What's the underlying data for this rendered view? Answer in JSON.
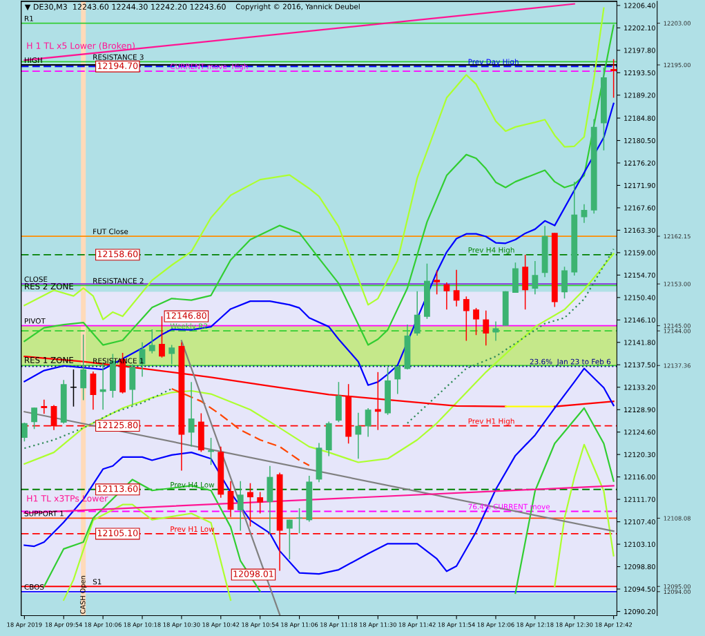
{
  "chart_data": {
    "type": "candlestick",
    "title": "▼ DE30,M3  12243.60 12244.30 12242.20 12243.60",
    "x": [
      "2019-04-18T09:42",
      "2019-04-18T09:45",
      "2019-04-18T09:48",
      "2019-04-18T09:51",
      "2019-04-18T09:54",
      "2019-04-18T09:57",
      "2019-04-18T10:00",
      "2019-04-18T10:03",
      "2019-04-18T10:06",
      "2019-04-18T10:09",
      "2019-04-18T10:12",
      "2019-04-18T10:15",
      "2019-04-18T10:18",
      "2019-04-18T10:21",
      "2019-04-18T10:24",
      "2019-04-18T10:27",
      "2019-04-18T10:30",
      "2019-04-18T10:33",
      "2019-04-18T10:36",
      "2019-04-18T10:39",
      "2019-04-18T10:42",
      "2019-04-18T10:45",
      "2019-04-18T10:48",
      "2019-04-18T10:51",
      "2019-04-18T10:54",
      "2019-04-18T10:57",
      "2019-04-18T11:00",
      "2019-04-18T11:03",
      "2019-04-18T11:06",
      "2019-04-18T11:09",
      "2019-04-18T11:12",
      "2019-04-18T11:15",
      "2019-04-18T11:18",
      "2019-04-18T11:21",
      "2019-04-18T11:24",
      "2019-04-18T11:27",
      "2019-04-18T11:30",
      "2019-04-18T11:33",
      "2019-04-18T11:36",
      "2019-04-18T11:39",
      "2019-04-18T11:42",
      "2019-04-18T11:45",
      "2019-04-18T11:48",
      "2019-04-18T11:51",
      "2019-04-18T11:54",
      "2019-04-18T11:57",
      "2019-04-18T12:00",
      "2019-04-18T12:03",
      "2019-04-18T12:06",
      "2019-04-18T12:09",
      "2019-04-18T12:12",
      "2019-04-18T12:15",
      "2019-04-18T12:18",
      "2019-04-18T12:21",
      "2019-04-18T12:24",
      "2019-04-18T12:27",
      "2019-04-18T12:30",
      "2019-04-18T12:33",
      "2019-04-18T12:36",
      "2019-04-18T12:39",
      "2019-04-18T12:42"
    ],
    "ohlc": [
      [
        12123.5,
        12126.4,
        12122.8,
        12126.3
      ],
      [
        12126.5,
        12129.3,
        12125.2,
        12129.3
      ],
      [
        12129.6,
        12130.8,
        12128.1,
        12129.2
      ],
      [
        12129.6,
        12129.8,
        12125.0,
        12125.7
      ],
      [
        12126.4,
        12134.6,
        12126.2,
        12133.8
      ],
      [
        12133.2,
        12136.6,
        12129.5,
        12133.2
      ],
      [
        12133.0,
        12143.3,
        12130.7,
        12136.6
      ],
      [
        12135.8,
        12136.2,
        12128.9,
        12131.7
      ],
      [
        12132.3,
        12137.8,
        12128.9,
        12132.8
      ],
      [
        12132.5,
        12139.6,
        12131.2,
        12138.3
      ],
      [
        12138.6,
        12139.8,
        12132.0,
        12132.2
      ],
      [
        12132.7,
        12137.6,
        12129.8,
        12137.1
      ],
      [
        12137.6,
        12141.8,
        12135.2,
        12140.5
      ],
      [
        12140.1,
        12144.3,
        12139.7,
        12141.3
      ],
      [
        12141.5,
        12146.8,
        12138.9,
        12139.1
      ],
      [
        12139.6,
        12141.3,
        12137.6,
        12140.8
      ],
      [
        12141.1,
        12141.8,
        12117.2,
        12124.1
      ],
      [
        12124.5,
        12134.2,
        12121.8,
        12127.2
      ],
      [
        12126.6,
        12128.2,
        12120.8,
        12121.1
      ],
      [
        12120.8,
        12123.5,
        12118.3,
        12121.1
      ],
      [
        12120.8,
        12121.8,
        12112.0,
        12112.6
      ],
      [
        12113.3,
        12115.2,
        12108.3,
        12109.7
      ],
      [
        12109.6,
        12115.2,
        12105.7,
        12112.6
      ],
      [
        12113.1,
        12114.8,
        12106.5,
        12112.1
      ],
      [
        12112.1,
        12113.1,
        12109.0,
        12111.1
      ],
      [
        12111.2,
        12118.1,
        12105.0,
        12116.0
      ],
      [
        12116.5,
        12116.8,
        12098.01,
        12105.7
      ],
      [
        12106.1,
        12107.8,
        12100.2,
        12107.8
      ],
      [
        12108.0,
        12110.0,
        12105.2,
        12108.2
      ],
      [
        12107.7,
        12116.2,
        12107.4,
        12115.1
      ],
      [
        12115.5,
        12122.5,
        12115.0,
        12121.6
      ],
      [
        12121.1,
        12126.6,
        12120.0,
        12126.3
      ],
      [
        12126.8,
        12134.2,
        12126.5,
        12131.6
      ],
      [
        12131.5,
        12133.8,
        12122.4,
        12123.7
      ],
      [
        12124.1,
        12128.3,
        12119.5,
        12125.8
      ],
      [
        12125.7,
        12129.2,
        12123.7,
        12128.9
      ],
      [
        12129.0,
        12136.1,
        12125.0,
        12128.5
      ],
      [
        12128.2,
        12137.0,
        12127.9,
        12134.5
      ],
      [
        12134.7,
        12137.2,
        12131.9,
        12137.2
      ],
      [
        12136.7,
        12145.2,
        12136.6,
        12143.1
      ],
      [
        12143.5,
        12151.6,
        12143.1,
        12147.1
      ],
      [
        12146.7,
        12156.9,
        12146.3,
        12153.6
      ],
      [
        12153.8,
        12155.6,
        12151.0,
        12153.3
      ],
      [
        12152.9,
        12153.3,
        12148.1,
        12151.6
      ],
      [
        12151.8,
        12155.7,
        12148.7,
        12149.8
      ],
      [
        12150.1,
        12150.6,
        12142.1,
        12147.8
      ],
      [
        12148.1,
        12148.4,
        12143.2,
        12146.2
      ],
      [
        12146.2,
        12147.9,
        12141.2,
        12143.5
      ],
      [
        12143.7,
        12145.8,
        12142.1,
        12144.5
      ],
      [
        12145.0,
        12151.6,
        12145.0,
        12151.6
      ],
      [
        12151.3,
        12157.1,
        12151.3,
        12156.0
      ],
      [
        12156.3,
        12158.6,
        12148.1,
        12151.8
      ],
      [
        12152.1,
        12157.4,
        12151.0,
        12154.7
      ],
      [
        12155.1,
        12164.1,
        12154.3,
        12162.2
      ],
      [
        12162.8,
        12162.8,
        12148.6,
        12149.5
      ],
      [
        12151.4,
        12156.3,
        12150.2,
        12155.6
      ],
      [
        12155.2,
        12172.6,
        12154.6,
        12166.3
      ],
      [
        12165.8,
        12168.3,
        12164.7,
        12167.2
      ],
      [
        12167.1,
        12184.6,
        12166.5,
        12183.1
      ],
      [
        12183.8,
        12194.5,
        12178.6,
        12192.6
      ],
      [
        12194.2,
        12196.1,
        12188.7,
        12193.8
      ]
    ],
    "colors": [
      "#3cb371",
      "#3cb371",
      "#ff0000",
      "#ff0000",
      "#3cb371",
      "#000000",
      "#3cb371",
      "#ff0000",
      "#3cb371",
      "#3cb371",
      "#ff0000",
      "#3cb371",
      "#3cb371",
      "#3cb371",
      "#ff0000",
      "#3cb371",
      "#ff0000",
      "#3cb371",
      "#ff0000",
      "#3cb371",
      "#ff0000",
      "#ff0000",
      "#3cb371",
      "#ff0000",
      "#ff0000",
      "#3cb371",
      "#ff0000",
      "#3cb371",
      "#3cb371",
      "#3cb371",
      "#3cb371",
      "#3cb371",
      "#3cb371",
      "#ff0000",
      "#3cb371",
      "#3cb371",
      "#ff0000",
      "#3cb371",
      "#3cb371",
      "#3cb371",
      "#3cb371",
      "#3cb371",
      "#ff0000",
      "#ff0000",
      "#ff0000",
      "#ff0000",
      "#ff0000",
      "#ff0000",
      "#3cb371",
      "#3cb371",
      "#3cb371",
      "#ff0000",
      "#3cb371",
      "#3cb371",
      "#ff0000",
      "#3cb371",
      "#3cb371",
      "#3cb371",
      "#3cb371",
      "#3cb371",
      "#ff0000"
    ],
    "series": [
      {
        "type": "line",
        "color": "#adff2f",
        "x": [
          "2019-04-18T09:42",
          "2019-04-18T09:51",
          "2019-04-18T09:57",
          "2019-04-18T10:00",
          "2019-04-18T10:03",
          "2019-04-18T10:06",
          "2019-04-18T10:09",
          "2019-04-18T10:12",
          "2019-04-18T10:21",
          "2019-04-18T10:27",
          "2019-04-18T10:33",
          "2019-04-18T10:39",
          "2019-04-18T10:45",
          "2019-04-18T10:54",
          "2019-04-18T11:03",
          "2019-04-18T11:09",
          "2019-04-18T11:12",
          "2019-04-18T11:18",
          "2019-04-18T11:27",
          "2019-04-18T11:30",
          "2019-04-18T11:36",
          "2019-04-18T11:42",
          "2019-04-18T11:51",
          "2019-04-18T11:57",
          "2019-04-18T12:00",
          "2019-04-18T12:06",
          "2019-04-18T12:09",
          "2019-04-18T12:12",
          "2019-04-18T12:18",
          "2019-04-18T12:21",
          "2019-04-18T12:24",
          "2019-04-18T12:27",
          "2019-04-18T12:30",
          "2019-04-18T12:33",
          "2019-04-18T12:36",
          "2019-04-18T12:39"
        ],
        "values": [
          12148.9,
          12151.8,
          12150.7,
          12152.2,
          12150.7,
          12146.2,
          12147.6,
          12146.8,
          12153.7,
          12156.6,
          12159.2,
          12165.7,
          12170.0,
          12173.0,
          12173.9,
          12171.3,
          12169.8,
          12164.0,
          12149.0,
          12150.2,
          12157.5,
          12173.3,
          12188.7,
          12193.1,
          12191.3,
          12184.2,
          12182.3,
          12183.1,
          12184.0,
          12184.5,
          12181.5,
          12179.3,
          12179.4,
          12181.2,
          12192.4,
          12205.9
        ]
      },
      {
        "type": "line",
        "color": "#32cd32",
        "x": [
          "2019-04-18T09:42",
          "2019-04-18T09:48",
          "2019-04-18T09:54",
          "2019-04-18T10:00",
          "2019-04-18T10:06",
          "2019-04-18T10:12",
          "2019-04-18T10:21",
          "2019-04-18T10:27",
          "2019-04-18T10:33",
          "2019-04-18T10:39",
          "2019-04-18T10:45",
          "2019-04-18T10:51",
          "2019-04-18T11:00",
          "2019-04-18T11:06",
          "2019-04-18T11:12",
          "2019-04-18T11:18",
          "2019-04-18T11:27",
          "2019-04-18T11:30",
          "2019-04-18T11:33",
          "2019-04-18T11:39",
          "2019-04-18T11:45",
          "2019-04-18T11:51",
          "2019-04-18T11:57",
          "2019-04-18T12:00",
          "2019-04-18T12:03",
          "2019-04-18T12:06",
          "2019-04-18T12:09",
          "2019-04-18T12:12",
          "2019-04-18T12:21",
          "2019-04-18T12:24",
          "2019-04-18T12:27",
          "2019-04-18T12:30",
          "2019-04-18T12:33",
          "2019-04-18T12:42"
        ],
        "values": [
          12142.0,
          12144.6,
          12145.2,
          12145.6,
          12141.3,
          12142.2,
          12148.5,
          12150.2,
          12149.9,
          12150.8,
          12157.6,
          12161.5,
          12164.2,
          12162.8,
          12157.9,
          12153.1,
          12141.3,
          12142.4,
          12144.2,
          12152.2,
          12164.9,
          12173.8,
          12177.8,
          12177.1,
          12175.1,
          12172.5,
          12171.5,
          12172.6,
          12174.8,
          12172.6,
          12171.5,
          12172.1,
          12173.8,
          12202.6
        ]
      },
      {
        "type": "line",
        "color": "#adff2f",
        "x": [
          "2019-04-18T09:42",
          "2019-04-18T09:51",
          "2019-04-18T10:00",
          "2019-04-18T10:12",
          "2019-04-18T10:21",
          "2019-04-18T10:27",
          "2019-04-18T10:33",
          "2019-04-18T10:39",
          "2019-04-18T10:51",
          "2019-04-18T11:00",
          "2019-04-18T11:09",
          "2019-04-18T11:15",
          "2019-04-18T11:24",
          "2019-04-18T11:33",
          "2019-04-18T11:42",
          "2019-04-18T11:48",
          "2019-04-18T12:03",
          "2019-04-18T12:18",
          "2019-04-18T12:27",
          "2019-04-18T12:33",
          "2019-04-18T12:42"
        ],
        "values": [
          12118.5,
          12120.7,
          12125.4,
          12129.2,
          12131.2,
          12132.2,
          12132.5,
          12131.9,
          12128.9,
          12125.4,
          12121.8,
          12120.7,
          12118.8,
          12119.5,
          12123.1,
          12126.3,
          12136.1,
          12144.8,
          12148.1,
          12151.9,
          12158.8
        ]
      },
      {
        "type": "line",
        "color": "#2e8b57",
        "line_style": "dotted",
        "x": [
          "2019-04-18T09:42",
          "2019-04-18T09:51",
          "2019-04-18T10:00",
          "2019-04-18T10:09",
          "2019-04-18T10:18",
          "2019-04-18T10:27",
          "2019-04-18T10:30",
          "2019-04-18T11:39",
          "2019-04-18T11:57",
          "2019-04-18T12:06",
          "2019-04-18T12:21",
          "2019-04-18T12:27",
          "2019-04-18T12:33",
          "2019-04-18T12:42"
        ],
        "values": [
          12121.5,
          12123.1,
          12125.4,
          12128.3,
          12130.2,
          12132.9,
          null,
          12126.3,
          12136.8,
          12139.1,
          12145.4,
          12146.5,
          12150.1,
          12159.7
        ]
      },
      {
        "type": "line",
        "color": "#ff4500",
        "line_style": "dashed",
        "x": [
          "2019-04-18T10:27",
          "2019-04-18T10:36",
          "2019-04-18T10:42",
          "2019-04-18T10:48",
          "2019-04-18T10:54",
          "2019-04-18T11:00",
          "2019-04-18T11:06",
          "2019-04-18T11:09"
        ],
        "values": [
          12132.9,
          12130.5,
          12127.9,
          12125.0,
          12123.1,
          12121.8,
          12119.2,
          12118.2
        ]
      },
      {
        "type": "line",
        "color": "#adff2f",
        "x": [
          "2019-04-18T09:54",
          "2019-04-18T09:57",
          "2019-04-18T10:03",
          "2019-04-18T10:12",
          "2019-04-18T10:15",
          "2019-04-18T10:21",
          "2019-04-18T10:33",
          "2019-04-18T10:39",
          "2019-04-18T10:45",
          "2019-04-18T10:48",
          "2019-04-18T12:24",
          "2019-04-18T12:27",
          "2019-04-18T12:30",
          "2019-04-18T12:33",
          "2019-04-18T12:39",
          "2019-04-18T12:42"
        ],
        "values": [
          12092.4,
          12096.3,
          12107.7,
          12110.7,
          12110.7,
          12107.8,
          12109.0,
          12107.2,
          12092.4,
          null,
          12095.0,
          12108.1,
          12115.9,
          12122.2,
          12113.3,
          12100.9
        ]
      },
      {
        "type": "line",
        "color": "#32cd32",
        "x": [
          "2019-04-18T09:48",
          "2019-04-18T09:54",
          "2019-04-18T10:00",
          "2019-04-18T10:03",
          "2019-04-18T10:15",
          "2019-04-18T10:21",
          "2019-04-18T10:33",
          "2019-04-18T10:39",
          "2019-04-18T10:45",
          "2019-04-18T10:48",
          "2019-04-18T10:54",
          "2019-04-18T10:57",
          "2019-04-18T12:12",
          "2019-04-18T12:18",
          "2019-04-18T12:24",
          "2019-04-18T12:33",
          "2019-04-18T12:39",
          "2019-04-18T12:42"
        ],
        "values": [
          12095.0,
          12102.2,
          12103.5,
          12108.1,
          12115.5,
          12113.4,
          12114.3,
          12113.4,
          12106.4,
          12099.9,
          12094.1,
          null,
          12093.7,
          12113.3,
          12122.4,
          12129.2,
          12122.4,
          12115.2
        ]
      },
      {
        "type": "line",
        "color": "#ff0000",
        "x": [
          "2019-04-18T09:42",
          "2019-04-18T10:00",
          "2019-04-18T10:18",
          "2019-04-18T10:39",
          "2019-04-18T10:57",
          "2019-04-18T11:15",
          "2019-04-18T11:54",
          "2019-04-18T12:09"
        ],
        "values": [
          12139.1,
          12138.1,
          12136.8,
          12135.1,
          12133.4,
          12131.8,
          12129.6,
          12129.5
        ]
      },
      {
        "type": "line",
        "color": "#ffff00",
        "x": [
          "2019-04-18T12:09",
          "2019-04-18T12:24"
        ],
        "values": [
          12129.5,
          12129.5
        ]
      },
      {
        "type": "line",
        "color": "#ff0000",
        "x": [
          "2019-04-18T12:24",
          "2019-04-18T12:42"
        ],
        "values": [
          12129.5,
          12130.5
        ]
      },
      {
        "type": "line",
        "color": "#0000ff",
        "x": [
          "2019-04-18T09:42",
          "2019-04-18T09:48",
          "2019-04-18T09:54",
          "2019-04-18T10:06",
          "2019-04-18T10:18",
          "2019-04-18T10:24",
          "2019-04-18T10:27",
          "2019-04-18T10:33",
          "2019-04-18T10:39",
          "2019-04-18T10:42",
          "2019-04-18T10:45",
          "2019-04-18T10:51",
          "2019-04-18T10:57",
          "2019-04-18T11:03",
          "2019-04-18T11:06",
          "2019-04-18T11:09",
          "2019-04-18T11:15",
          "2019-04-18T11:18",
          "2019-04-18T11:24",
          "2019-04-18T11:27",
          "2019-04-18T11:30",
          "2019-04-18T11:33",
          "2019-04-18T11:36",
          "2019-04-18T11:48",
          "2019-04-18T11:51",
          "2019-04-18T11:54",
          "2019-04-18T11:57",
          "2019-04-18T12:00",
          "2019-04-18T12:03",
          "2019-04-18T12:06",
          "2019-04-18T12:09",
          "2019-04-18T12:12",
          "2019-04-18T12:15",
          "2019-04-18T12:18",
          "2019-04-18T12:21",
          "2019-04-18T12:24",
          "2019-04-18T12:39",
          "2019-04-18T12:42"
        ],
        "values": [
          12134.3,
          12136.4,
          12137.3,
          12136.6,
          12140.7,
          12143.3,
          12144.3,
          12144.2,
          12144.8,
          12146.5,
          12148.2,
          12149.7,
          12149.7,
          12149.0,
          12148.4,
          12146.5,
          12144.8,
          12142.4,
          12138.1,
          12133.6,
          12134.2,
          12135.7,
          12137.4,
          12155.3,
          12159.1,
          12161.7,
          12162.6,
          12162.6,
          12162.1,
          12160.9,
          12160.8,
          12161.5,
          12162.7,
          12163.5,
          12165.1,
          12164.2,
          12181.1,
          12187.6
        ]
      },
      {
        "type": "line",
        "color": "#0000ff",
        "x": [
          "2019-04-18T09:42",
          "2019-04-18T09:45",
          "2019-04-18T09:48",
          "2019-04-18T09:54",
          "2019-04-18T10:00",
          "2019-04-18T10:06",
          "2019-04-18T10:09",
          "2019-04-18T10:12",
          "2019-04-18T10:18",
          "2019-04-18T10:21",
          "2019-04-18T10:27",
          "2019-04-18T10:33",
          "2019-04-18T10:39",
          "2019-04-18T10:45",
          "2019-04-18T10:51",
          "2019-04-18T10:57",
          "2019-04-18T11:00",
          "2019-04-18T11:06",
          "2019-04-18T11:12",
          "2019-04-18T11:18",
          "2019-04-18T11:27",
          "2019-04-18T11:33",
          "2019-04-18T11:42",
          "2019-04-18T11:48",
          "2019-04-18T11:51",
          "2019-04-18T11:54",
          "2019-04-18T12:00",
          "2019-04-18T12:06",
          "2019-04-18T12:12",
          "2019-04-18T12:18",
          "2019-04-18T12:24",
          "2019-04-18T12:30",
          "2019-04-18T12:33",
          "2019-04-18T12:39",
          "2019-04-18T12:42"
        ],
        "values": [
          12102.9,
          12102.7,
          12103.5,
          12107.3,
          12111.7,
          12117.5,
          12118.1,
          12119.8,
          12119.8,
          12119.2,
          12120.2,
          12120.7,
          12119.5,
          12113.0,
          12107.7,
          12105.2,
          12101.8,
          12097.6,
          12097.4,
          12098.2,
          12101.3,
          12103.2,
          12103.2,
          12100.3,
          12097.9,
          12098.9,
          12105.5,
          12113.6,
          12120.1,
          12124.0,
          12129.2,
          12134.2,
          12136.8,
          12133.1,
          12129.7
        ]
      },
      {
        "type": "line",
        "color": "#808080",
        "x": [
          "2019-04-18T09:42",
          "2019-04-18T12:42"
        ],
        "values": [
          12128.5,
          12105.6
        ]
      },
      {
        "type": "line",
        "color": "#808080",
        "x": [
          "2019-04-18T10:30",
          "2019-04-18T11:00"
        ],
        "values": [
          12142.1,
          12089.6
        ]
      },
      {
        "type": "line",
        "name": "H 1 TL x5 Lower (Broken)",
        "color": "#ff1493",
        "x": [
          "2019-04-18T09:42",
          "2019-04-18T12:30"
        ],
        "values": [
          12195.9,
          12206.7
        ]
      },
      {
        "type": "line",
        "name": "H1 TL x3TPs Lower",
        "color": "#ff1493",
        "x": [
          "2019-04-18T09:42",
          "2019-04-18T12:42"
        ],
        "values": [
          12109.1,
          12114.3
        ]
      }
    ],
    "ref_lines": [
      {
        "axis": "y",
        "value": 12203.0,
        "label": "R1",
        "color": "#32cd32"
      },
      {
        "axis": "y",
        "value": 12195.6,
        "label": "RESISTANCE 3",
        "color": "#32cd32"
      },
      {
        "axis": "y",
        "value": 12195.0,
        "label": "HIGH",
        "color": "#000000"
      },
      {
        "axis": "y",
        "value": 12194.7,
        "label": "Prev Day High",
        "color": "#0000ff",
        "line_style": "dashed"
      },
      {
        "axis": "y",
        "value": 12193.8,
        "label": "CURRENT move  High",
        "color": "#ff00ff",
        "line_style": "dashed"
      },
      {
        "axis": "y",
        "value": 12162.15,
        "label": "FUT Close",
        "color": "#ff8c00"
      },
      {
        "axis": "y",
        "value": 12158.6,
        "label": "Prev H4 High",
        "color": "#008000",
        "line_style": "dashed"
      },
      {
        "axis": "y",
        "value": 12153.0,
        "label": "CLOSE",
        "color": "#8a2be2"
      },
      {
        "axis": "y",
        "value": 12152.7,
        "label": "RESISTANCE 2",
        "color": "#32cd32"
      },
      {
        "axis": "y",
        "value": 12145.0,
        "label": "PIVOT",
        "color": "#ff00ff"
      },
      {
        "axis": "y",
        "value": 12144.0,
        "label": "Weekly R2",
        "color": "#32cd32",
        "line_style": "dashed"
      },
      {
        "axis": "y",
        "value": 12137.36,
        "label": "RESISTANCE 1",
        "color": "#32cd32"
      },
      {
        "axis": "y",
        "value": 12137.2,
        "label": "23.6%  Jan 23 to Feb 6",
        "color": "#00008b",
        "line_style": "dotted"
      },
      {
        "axis": "y",
        "value": 12125.8,
        "label": "Prev H1 High",
        "color": "#ff0000",
        "line_style": "dashed"
      },
      {
        "axis": "y",
        "value": 12113.6,
        "label": "Prev H4 Low",
        "color": "#008000",
        "line_style": "dashed"
      },
      {
        "axis": "y",
        "value": 12109.4,
        "label": "76.4% CURRENT move",
        "color": "#ff00ff",
        "line_style": "dashed"
      },
      {
        "axis": "y",
        "value": 12108.08,
        "label": "SUPPORT 1",
        "color": "#ff4500"
      },
      {
        "axis": "y",
        "value": 12105.1,
        "label": "Prev H1 Low",
        "color": "#ff0000",
        "line_style": "dashed"
      },
      {
        "axis": "y",
        "value": 12095.0,
        "label": "S1",
        "color": "#ff0000"
      },
      {
        "axis": "y",
        "value": 12094.0,
        "label": "CBOS",
        "color": "#0000ff"
      },
      {
        "axis": "x",
        "value": "2019-04-18T10:00",
        "label": "CASH Open",
        "color": "#ffdab9"
      }
    ],
    "bands": [
      {
        "axis": "y",
        "from": 12151.5,
        "to": 12207.2,
        "label": "RES 2 ZONE",
        "color": "#b0e0e6"
      },
      {
        "axis": "y",
        "from": 12137.36,
        "to": 12145.0,
        "label": "RES 1 ZONE",
        "color": "#c5e88a"
      },
      {
        "axis": "y",
        "from": 12089.4,
        "to": 12093.7,
        "color": "#b0e0e6"
      }
    ],
    "annotations": [
      "Copyright © 2016, Yannick Deubel",
      {
        "text": "12146.80",
        "x": "2019-04-18T10:24",
        "y": 12146.8
      },
      {
        "text": "12098.01",
        "x": "2019-04-18T11:00",
        "y": 12098.01
      },
      {
        "text": "12194.70",
        "x": "2019-04-18T10:03",
        "y": 12194.7
      },
      {
        "text": "12158.60",
        "x": "2019-04-18T10:03",
        "y": 12158.6
      },
      {
        "text": "12125.80",
        "x": "2019-04-18T10:03",
        "y": 12125.8
      },
      {
        "text": "12113.60",
        "x": "2019-04-18T10:03",
        "y": 12113.6
      },
      {
        "text": "12105.10",
        "x": "2019-04-18T10:03",
        "y": 12105.1
      }
    ],
    "y2lim": [
      12089.4,
      12207.2
    ],
    "y2ticks": [
      {
        "value": 12203.0,
        "label": "12203.00"
      },
      {
        "value": 12195.0,
        "label": "12195.00"
      },
      {
        "value": 12162.15,
        "label": "12162.15"
      },
      {
        "value": 12153.0,
        "label": "12153.00"
      },
      {
        "value": 12145.0,
        "label": "12145.00"
      },
      {
        "value": 12144.0,
        "label": "12144.00"
      },
      {
        "value": 12137.36,
        "label": "12137.36"
      },
      {
        "value": 12108.08,
        "label": "12108.08"
      },
      {
        "value": 12095.0,
        "label": "12095.00"
      },
      {
        "value": 12094.0,
        "label": "12094.00"
      }
    ],
    "xlim": [
      "2019-04-18T09:41",
      "2019-04-18T12:43"
    ],
    "xticks": [
      {
        "value": "2019-04-18T09:42",
        "label": "18 Apr 2019"
      },
      {
        "value": "2019-04-18T09:54",
        "label": "18 Apr 09:54"
      },
      {
        "value": "2019-04-18T10:06",
        "label": "18 Apr 10:06"
      },
      {
        "value": "2019-04-18T10:18",
        "label": "18 Apr 10:18"
      },
      {
        "value": "2019-04-18T10:30",
        "label": "18 Apr 10:30"
      },
      {
        "value": "2019-04-18T10:42",
        "label": "18 Apr 10:42"
      },
      {
        "value": "2019-04-18T10:54",
        "label": "18 Apr 10:54"
      },
      {
        "value": "2019-04-18T11:06",
        "label": "18 Apr 11:06"
      },
      {
        "value": "2019-04-18T11:18",
        "label": "18 Apr 11:18"
      },
      {
        "value": "2019-04-18T11:30",
        "label": "18 Apr 11:30"
      },
      {
        "value": "2019-04-18T11:42",
        "label": "18 Apr 11:42"
      },
      {
        "value": "2019-04-18T11:54",
        "label": "18 Apr 11:54"
      },
      {
        "value": "2019-04-18T12:06",
        "label": "18 Apr 12:06"
      },
      {
        "value": "2019-04-18T12:18",
        "label": "18 Apr 12:18"
      },
      {
        "value": "2019-04-18T12:30",
        "label": "18 Apr 12:30"
      },
      {
        "value": "2019-04-18T12:42",
        "label": "18 Apr 12:42"
      }
    ],
    "ylim": [
      12089.4,
      12207.2
    ],
    "yticks": [
      {
        "value": 12206.4,
        "label": "12206.40"
      },
      {
        "value": 12202.1,
        "label": "12202.10"
      },
      {
        "value": 12197.8,
        "label": "12197.80"
      },
      {
        "value": 12193.5,
        "label": "12193.50"
      },
      {
        "value": 12189.2,
        "label": "12189.20"
      },
      {
        "value": 12184.8,
        "label": "12184.80"
      },
      {
        "value": 12180.5,
        "label": "12180.50"
      },
      {
        "value": 12176.2,
        "label": "12176.20"
      },
      {
        "value": 12171.9,
        "label": "12171.90"
      },
      {
        "value": 12167.6,
        "label": "12167.60"
      },
      {
        "value": 12163.3,
        "label": "12163.30"
      },
      {
        "value": 12159.0,
        "label": "12159.00"
      },
      {
        "value": 12154.7,
        "label": "12154.70"
      },
      {
        "value": 12150.4,
        "label": "12150.40"
      },
      {
        "value": 12146.1,
        "label": "12146.10"
      },
      {
        "value": 12141.8,
        "label": "12141.80"
      },
      {
        "value": 12137.5,
        "label": "12137.50"
      },
      {
        "value": 12133.2,
        "label": "12133.20"
      },
      {
        "value": 12128.9,
        "label": "12128.90"
      },
      {
        "value": 12124.6,
        "label": "12124.60"
      },
      {
        "value": 12120.3,
        "label": "12120.30"
      },
      {
        "value": 12116.0,
        "label": "12116.00"
      },
      {
        "value": 12111.7,
        "label": "12111.70"
      },
      {
        "value": 12107.4,
        "label": "12107.40"
      },
      {
        "value": 12103.1,
        "label": "12103.10"
      },
      {
        "value": 12098.8,
        "label": "12098.80"
      },
      {
        "value": 12094.5,
        "label": "12094.50"
      },
      {
        "value": 12090.2,
        "label": "12090.20"
      }
    ]
  }
}
